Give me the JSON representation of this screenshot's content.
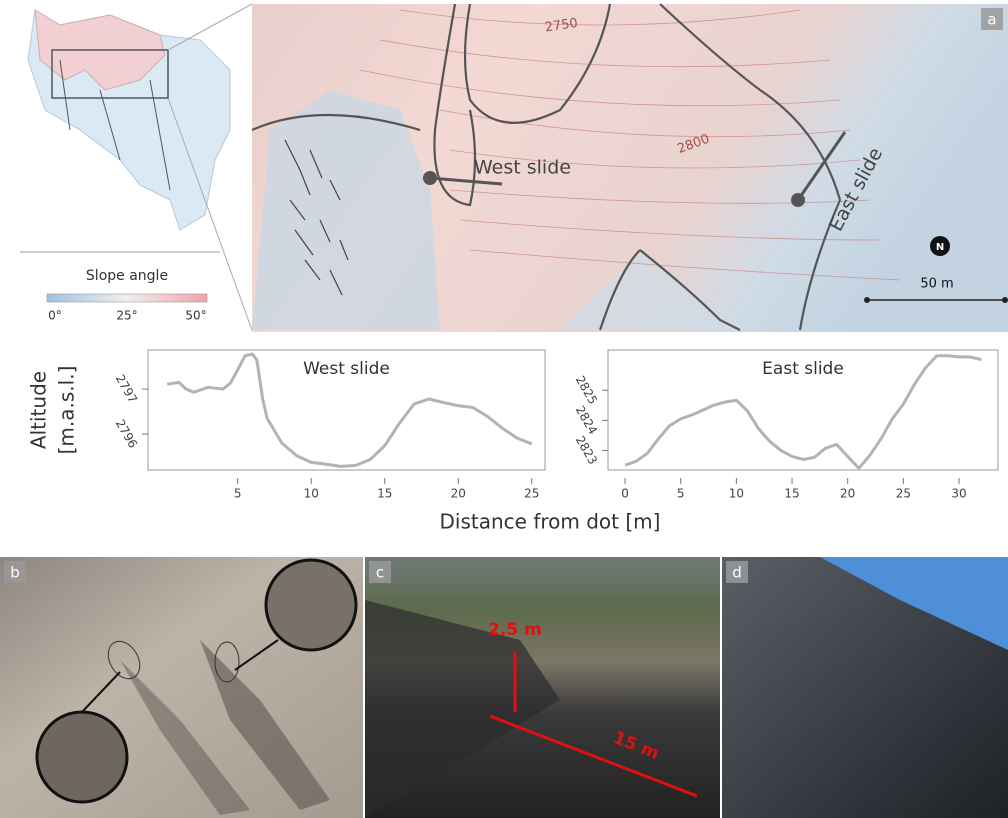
{
  "figure": {
    "panels": [
      "a",
      "b",
      "c",
      "d"
    ],
    "y_label_1": "Altitude",
    "y_label_2": "[m.a.s.l.]",
    "x_label": "Distance from dot [m]"
  },
  "map": {
    "contours": [
      "2750",
      "2800"
    ],
    "west_label": "West slide",
    "east_label": "East slide",
    "north": "N",
    "scale_label": "50 m",
    "legend": {
      "title": "Slope angle",
      "ticks": [
        "0°",
        "25°",
        "50°"
      ]
    }
  },
  "photo_c": {
    "height_label": "2.5 m",
    "length_label": "15 m"
  },
  "chart_data": [
    {
      "type": "line",
      "title": "West slide",
      "color": "#b3b3b3",
      "x": [
        0.2,
        1,
        1.5,
        2,
        3,
        4,
        4.5,
        5,
        5.5,
        6,
        6.3,
        6.7,
        7,
        8,
        9,
        10,
        11,
        12,
        13,
        14,
        15,
        16,
        17,
        18,
        19,
        20,
        21,
        22,
        23,
        24,
        25
      ],
      "values": [
        2797.11,
        2797.15,
        2797,
        2796.93,
        2797.04,
        2797,
        2797.13,
        2797.43,
        2797.74,
        2797.78,
        2797.65,
        2796.78,
        2796.35,
        2795.8,
        2795.52,
        2795.37,
        2795.33,
        2795.28,
        2795.3,
        2795.43,
        2795.74,
        2796.24,
        2796.67,
        2796.78,
        2796.7,
        2796.63,
        2796.59,
        2796.39,
        2796.13,
        2795.91,
        2795.78
      ],
      "xlim": [
        -1.1,
        25.9
      ],
      "xticks": [
        5,
        10,
        15,
        20,
        25
      ],
      "ylim": [
        2795.2,
        2797.87
      ],
      "yticks": [
        2796,
        2797
      ]
    },
    {
      "type": "line",
      "title": "East slide",
      "color": "#b3b3b3",
      "x": [
        0,
        1,
        2,
        3,
        4,
        5,
        6,
        7,
        8,
        9,
        10,
        11,
        12,
        13,
        14,
        15,
        16,
        17,
        18,
        19,
        20,
        21,
        22,
        23,
        24,
        25,
        26,
        27,
        28,
        29,
        30,
        31,
        32
      ],
      "values": [
        2822.51,
        2822.64,
        2822.9,
        2823.39,
        2823.82,
        2824.05,
        2824.18,
        2824.34,
        2824.51,
        2824.61,
        2824.67,
        2824.31,
        2823.72,
        2823.3,
        2823,
        2822.8,
        2822.7,
        2822.77,
        2823.07,
        2823.2,
        2822.8,
        2822.41,
        2822.84,
        2823.39,
        2824.05,
        2824.54,
        2825.2,
        2825.75,
        2826.15,
        2826.15,
        2826.11,
        2826.11,
        2826.02
      ],
      "xlim": [
        -1.53,
        33.5
      ],
      "xticks": [
        0,
        5,
        10,
        15,
        20,
        25,
        30
      ],
      "ylim": [
        2822.35,
        2826.34
      ],
      "yticks": [
        2823,
        2824,
        2825
      ]
    }
  ]
}
